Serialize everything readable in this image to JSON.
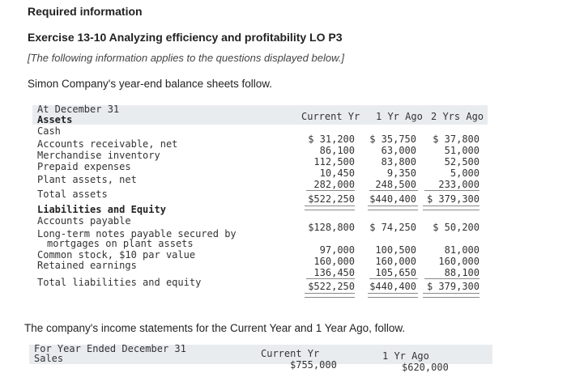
{
  "header": {
    "required": "Required information",
    "exercise": "Exercise 13-10 Analyzing efficiency and profitability LO P3",
    "note": "[The following information applies to the questions displayed below.]",
    "intro": "Simon Company's year-end balance sheets follow."
  },
  "balance_sheet": {
    "period_label": "At December 31",
    "columns": [
      "Current Yr",
      "1 Yr Ago",
      "2 Yrs Ago"
    ],
    "assets_heading": "Assets",
    "rows": [
      {
        "label": "Cash",
        "v": [
          "$ 31,200",
          "$ 35,750",
          "$ 37,800"
        ]
      },
      {
        "label": "Accounts receivable, net",
        "v": [
          "86,100",
          "63,000",
          "51,000"
        ]
      },
      {
        "label": "Merchandise inventory",
        "v": [
          "112,500",
          "83,800",
          "52,500"
        ]
      },
      {
        "label": "Prepaid expenses",
        "v": [
          "10,450",
          "9,350",
          "5,000"
        ]
      },
      {
        "label": "Plant assets, net",
        "v": [
          "282,000",
          "248,500",
          "233,000"
        ]
      }
    ],
    "total_assets": {
      "label": "Total assets",
      "v": [
        "$522,250",
        "$440,400",
        "$ 379,300"
      ]
    },
    "liab_heading": "Liabilities and Equity",
    "accounts_payable": {
      "label": "Accounts payable",
      "v": [
        "$128,800",
        "$ 74,250",
        "$ 50,200"
      ]
    },
    "long_term_label_1": "Long-term notes payable secured by",
    "long_term_label_2": "mortgages on plant assets",
    "long_term_values": [
      "97,000",
      "100,500",
      "81,000"
    ],
    "common_stock": {
      "label": "Common stock, $10 par value",
      "v": [
        "160,000",
        "160,000",
        "160,000"
      ]
    },
    "retained": {
      "label": "Retained earnings",
      "v": [
        "136,450",
        "105,650",
        "88,100"
      ]
    },
    "total_le": {
      "label": "Total liabilities and equity",
      "v": [
        "$522,250",
        "$440,400",
        "$ 379,300"
      ]
    }
  },
  "income": {
    "intro": "The company's income statements for the Current Year and 1 Year Ago, follow.",
    "period_label": "For Year Ended December 31",
    "columns": [
      "Current Yr",
      "1 Yr Ago"
    ],
    "sales_label": "Sales",
    "sales_values": [
      "$755,000",
      "$620,000"
    ]
  }
}
